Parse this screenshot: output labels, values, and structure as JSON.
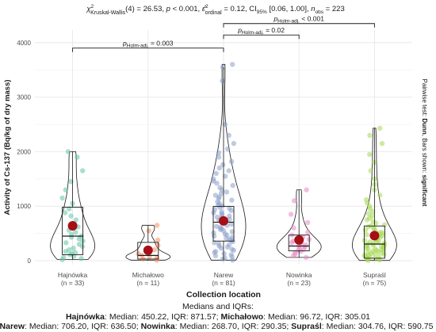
{
  "chart_data": {
    "type": "violin-box",
    "subtitle_stats": {
      "test": "Kruskal-Wallis",
      "df": "4",
      "statistic": "26.53",
      "p": "p < 0.001",
      "effect_size_label": "ordinal",
      "effect_size": "0.12",
      "ci_label": "CI",
      "ci_level": "95%",
      "ci": "[0.06, 1.00]",
      "n_obs": "223"
    },
    "xlabel": "Collection location",
    "ylabel": "Activity of Cs-137 (Bq/kg of dry mass)",
    "ylim": [
      0,
      4200
    ],
    "yticks": [
      0,
      1000,
      2000,
      3000,
      4000
    ],
    "yticklabels": [
      "0",
      "1000",
      "2000",
      "3000",
      "4000"
    ],
    "grid": true,
    "groups": [
      {
        "label": "Hajnówka",
        "n_label": "(n = 33)",
        "n": 33,
        "color": "#66c2a5",
        "median": 450.22,
        "q1": 110,
        "q3": 981.79,
        "whisker_low": 15,
        "whisker_high": 2000,
        "mean": 640,
        "points": [
          20,
          40,
          60,
          80,
          110,
          130,
          150,
          170,
          200,
          230,
          260,
          300,
          330,
          360,
          400,
          430,
          450,
          480,
          520,
          560,
          620,
          680,
          750,
          820,
          880,
          950,
          1050,
          1150,
          1300,
          1450,
          1650,
          1900,
          2000
        ]
      },
      {
        "label": "Michałowo",
        "n_label": "(n = 11)",
        "n": 11,
        "color": "#fc8d62",
        "median": 96.72,
        "q1": 30,
        "q3": 335.73,
        "whisker_low": 5,
        "whisker_high": 650,
        "mean": 190,
        "points": [
          10,
          30,
          50,
          80,
          97,
          130,
          200,
          280,
          380,
          550,
          650
        ]
      },
      {
        "label": "Narew",
        "n_label": "(n = 81)",
        "n": 81,
        "color": "#8da0cb",
        "median": 706.2,
        "q1": 360,
        "q3": 996.7,
        "whisker_low": 10,
        "whisker_high": 3550,
        "mean": 730,
        "points": [
          10,
          30,
          50,
          70,
          90,
          110,
          130,
          150,
          170,
          190,
          210,
          230,
          250,
          270,
          290,
          310,
          330,
          350,
          370,
          390,
          410,
          430,
          450,
          470,
          490,
          510,
          530,
          550,
          570,
          590,
          610,
          630,
          650,
          670,
          690,
          706,
          720,
          740,
          760,
          780,
          800,
          820,
          840,
          860,
          880,
          900,
          920,
          940,
          960,
          980,
          1000,
          1020,
          1050,
          1080,
          1110,
          1140,
          1170,
          1200,
          1230,
          1260,
          1300,
          1340,
          1380,
          1420,
          1460,
          1500,
          1550,
          1600,
          1650,
          1700,
          1760,
          1820,
          1900,
          1980,
          2050,
          2150,
          2300,
          2500,
          3300,
          3550,
          3600
        ]
      },
      {
        "label": "Nowinka",
        "n_label": "(n = 23)",
        "n": 23,
        "color": "#e78ac3",
        "median": 268.7,
        "q1": 180,
        "q3": 470.35,
        "whisker_low": 60,
        "whisker_high": 1300,
        "mean": 380,
        "points": [
          60,
          90,
          120,
          150,
          170,
          190,
          210,
          230,
          250,
          269,
          290,
          310,
          330,
          360,
          390,
          430,
          470,
          520,
          600,
          700,
          850,
          1100,
          1300
        ]
      },
      {
        "label": "Supraśl",
        "n_label": "(n = 75)",
        "n": 75,
        "color": "#a6d854",
        "median": 304.76,
        "q1": 45,
        "q3": 636.51,
        "whisker_low": 5,
        "whisker_high": 2430,
        "mean": 460,
        "points": [
          5,
          15,
          25,
          35,
          45,
          55,
          65,
          75,
          85,
          95,
          105,
          115,
          125,
          135,
          145,
          155,
          165,
          175,
          185,
          195,
          205,
          215,
          225,
          235,
          245,
          255,
          265,
          275,
          285,
          295,
          305,
          315,
          325,
          335,
          345,
          355,
          370,
          385,
          400,
          415,
          430,
          445,
          460,
          475,
          490,
          505,
          520,
          540,
          560,
          580,
          600,
          620,
          640,
          660,
          690,
          720,
          750,
          780,
          820,
          860,
          900,
          950,
          1000,
          1060,
          1120,
          1200,
          1300,
          1400,
          1500,
          1650,
          1800,
          1950,
          2150,
          2300,
          2430
        ]
      }
    ],
    "comparisons": [
      {
        "from": 0,
        "to": 2,
        "label_prefix": "p",
        "label_sub": "Holm-adj.",
        "label_value": "= 0.003",
        "y": 3900
      },
      {
        "from": 2,
        "to": 3,
        "label_prefix": "p",
        "label_sub": "Holm-adj.",
        "label_value": "= 0.02",
        "y": 4140
      },
      {
        "from": 2,
        "to": 4,
        "label_prefix": "p",
        "label_sub": "Holm-adj.",
        "label_value": "< 0.001",
        "y": 4350
      }
    ],
    "side_caption": {
      "prefix": "Pairwise test: ",
      "test": "Dunn",
      "middle": ", Bars shown: ",
      "bars": "significant"
    },
    "colors": {
      "mean": "#a50f15",
      "box": "#1a1a1a",
      "grid": "#e5e5e5"
    }
  },
  "footer": {
    "title": "Medians and IQRs:",
    "line1": [
      {
        "name": "Hajnówka",
        "stats": ": Median: 450.22, IQR: 871.57; "
      },
      {
        "name": "Michałowo",
        "stats": ": Median: 96.72, IQR: 305.01"
      }
    ],
    "line2": [
      {
        "name": "Narew",
        "stats": ": Median: 706.20, IQR: 636.50; "
      },
      {
        "name": "Nowinka",
        "stats": ": Median: 268.70, IQR: 290.35; "
      },
      {
        "name": "Supraśl",
        "stats": ": Median: 304.76, IQR: 590.75"
      }
    ]
  }
}
